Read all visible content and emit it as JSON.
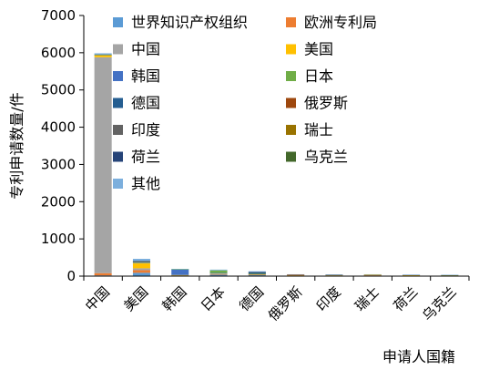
{
  "chart_data": {
    "type": "bar",
    "stacked": true,
    "xlabel": "申请人国籍",
    "ylabel": "专利申请数量/件",
    "ylim": [
      0,
      7000
    ],
    "yticks": [
      "0",
      "1000",
      "2000",
      "3000",
      "4000",
      "5000",
      "6000",
      "7000"
    ],
    "categories": [
      "中国",
      "美国",
      "韩国",
      "日本",
      "德国",
      "俄罗斯",
      "印度",
      "瑞士",
      "荷兰",
      "乌克兰"
    ],
    "legend_position": "top-right, 2 columns",
    "series": [
      {
        "name": "世界知识产权组织",
        "color": "#5B9BD5",
        "values": [
          20,
          90,
          10,
          40,
          30,
          5,
          5,
          20,
          10,
          5
        ]
      },
      {
        "name": "欧洲专利局",
        "color": "#ED7D31",
        "values": [
          60,
          70,
          5,
          10,
          10,
          5,
          5,
          5,
          5,
          5
        ]
      },
      {
        "name": "中国",
        "color": "#A5A5A5",
        "values": [
          5800,
          50,
          10,
          20,
          10,
          5,
          5,
          5,
          5,
          5
        ]
      },
      {
        "name": "美国",
        "color": "#FFC000",
        "values": [
          60,
          140,
          5,
          10,
          5,
          5,
          5,
          5,
          5,
          5
        ]
      },
      {
        "name": "韩国",
        "color": "#4472C4",
        "values": [
          5,
          10,
          150,
          5,
          0,
          0,
          0,
          0,
          0,
          0
        ]
      },
      {
        "name": "日本",
        "color": "#70AD47",
        "values": [
          5,
          20,
          5,
          70,
          5,
          0,
          0,
          0,
          0,
          0
        ]
      },
      {
        "name": "德国",
        "color": "#255E91",
        "values": [
          5,
          5,
          0,
          0,
          40,
          0,
          0,
          0,
          0,
          0
        ]
      },
      {
        "name": "俄罗斯",
        "color": "#9E480E",
        "values": [
          0,
          5,
          0,
          0,
          0,
          25,
          0,
          0,
          0,
          0
        ]
      },
      {
        "name": "印度",
        "color": "#636363",
        "values": [
          0,
          5,
          0,
          0,
          0,
          0,
          20,
          0,
          0,
          0
        ]
      },
      {
        "name": "瑞士",
        "color": "#997300",
        "values": [
          0,
          5,
          0,
          0,
          5,
          0,
          0,
          10,
          0,
          0
        ]
      },
      {
        "name": "荷兰",
        "color": "#264478",
        "values": [
          0,
          5,
          0,
          0,
          5,
          0,
          0,
          0,
          10,
          0
        ]
      },
      {
        "name": "乌克兰",
        "color": "#43682B",
        "values": [
          0,
          0,
          0,
          0,
          0,
          0,
          0,
          0,
          0,
          10
        ]
      },
      {
        "name": "其他",
        "color": "#7CAFDD",
        "values": [
          30,
          60,
          10,
          20,
          20,
          5,
          5,
          5,
          5,
          5
        ]
      }
    ]
  }
}
